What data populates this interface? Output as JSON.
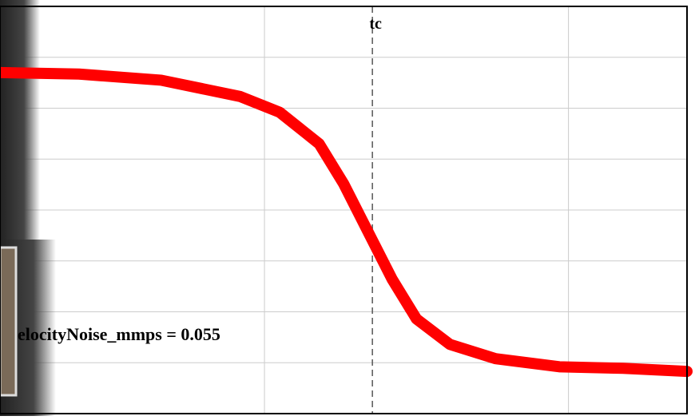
{
  "chart_data": {
    "type": "line",
    "x": [
      0.13,
      0.39,
      0.66,
      0.92,
      1.05,
      1.18,
      1.26,
      1.34,
      1.42,
      1.5,
      1.61,
      1.76,
      1.97,
      2.18,
      2.39
    ],
    "series": [
      {
        "color": "#ff0000",
        "values": [
          6.7,
          6.67,
          6.55,
          6.23,
          5.92,
          5.3,
          4.52,
          3.58,
          2.64,
          1.86,
          1.36,
          1.08,
          0.92,
          0.89,
          0.83
        ]
      }
    ],
    "xlim": [
      0.13,
      2.39
    ],
    "ylim": [
      0,
      8
    ],
    "grid_x": [
      1,
      2
    ],
    "grid_y": [
      1,
      2,
      3,
      4,
      5,
      6,
      7
    ],
    "annotations": [
      {
        "text": "tc",
        "x": 1.355
      }
    ],
    "note_text": "elocityNoise_mmps = 0.055"
  }
}
